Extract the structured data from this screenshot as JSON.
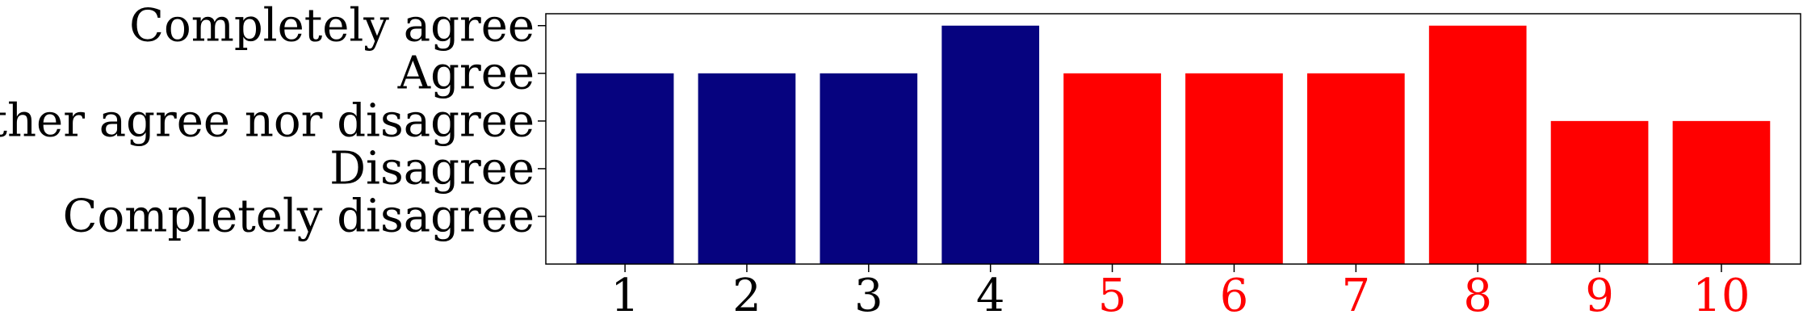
{
  "chart_data": {
    "type": "bar",
    "categories": [
      "1",
      "2",
      "3",
      "4",
      "5",
      "6",
      "7",
      "8",
      "9",
      "10"
    ],
    "values": [
      4,
      4,
      4,
      5,
      4,
      4,
      4,
      5,
      3,
      3
    ],
    "bar_colors": [
      "#06037f",
      "#06037f",
      "#06037f",
      "#06037f",
      "#ff0000",
      "#ff0000",
      "#ff0000",
      "#ff0000",
      "#ff0000",
      "#ff0000"
    ],
    "xtick_colors": [
      "#000000",
      "#000000",
      "#000000",
      "#000000",
      "#ff0000",
      "#ff0000",
      "#ff0000",
      "#ff0000",
      "#ff0000",
      "#ff0000"
    ],
    "yticks": [
      1,
      2,
      3,
      4,
      5
    ],
    "ytick_labels": [
      "Completely disagree",
      "Disagree",
      "Neither agree nor disagree",
      "Agree",
      "Completely agree"
    ],
    "ylim": [
      0,
      5.25
    ],
    "xlim": [
      0.35,
      10.65
    ],
    "title": "",
    "xlabel": "",
    "ylabel": "",
    "grid": false,
    "legend": "none"
  }
}
